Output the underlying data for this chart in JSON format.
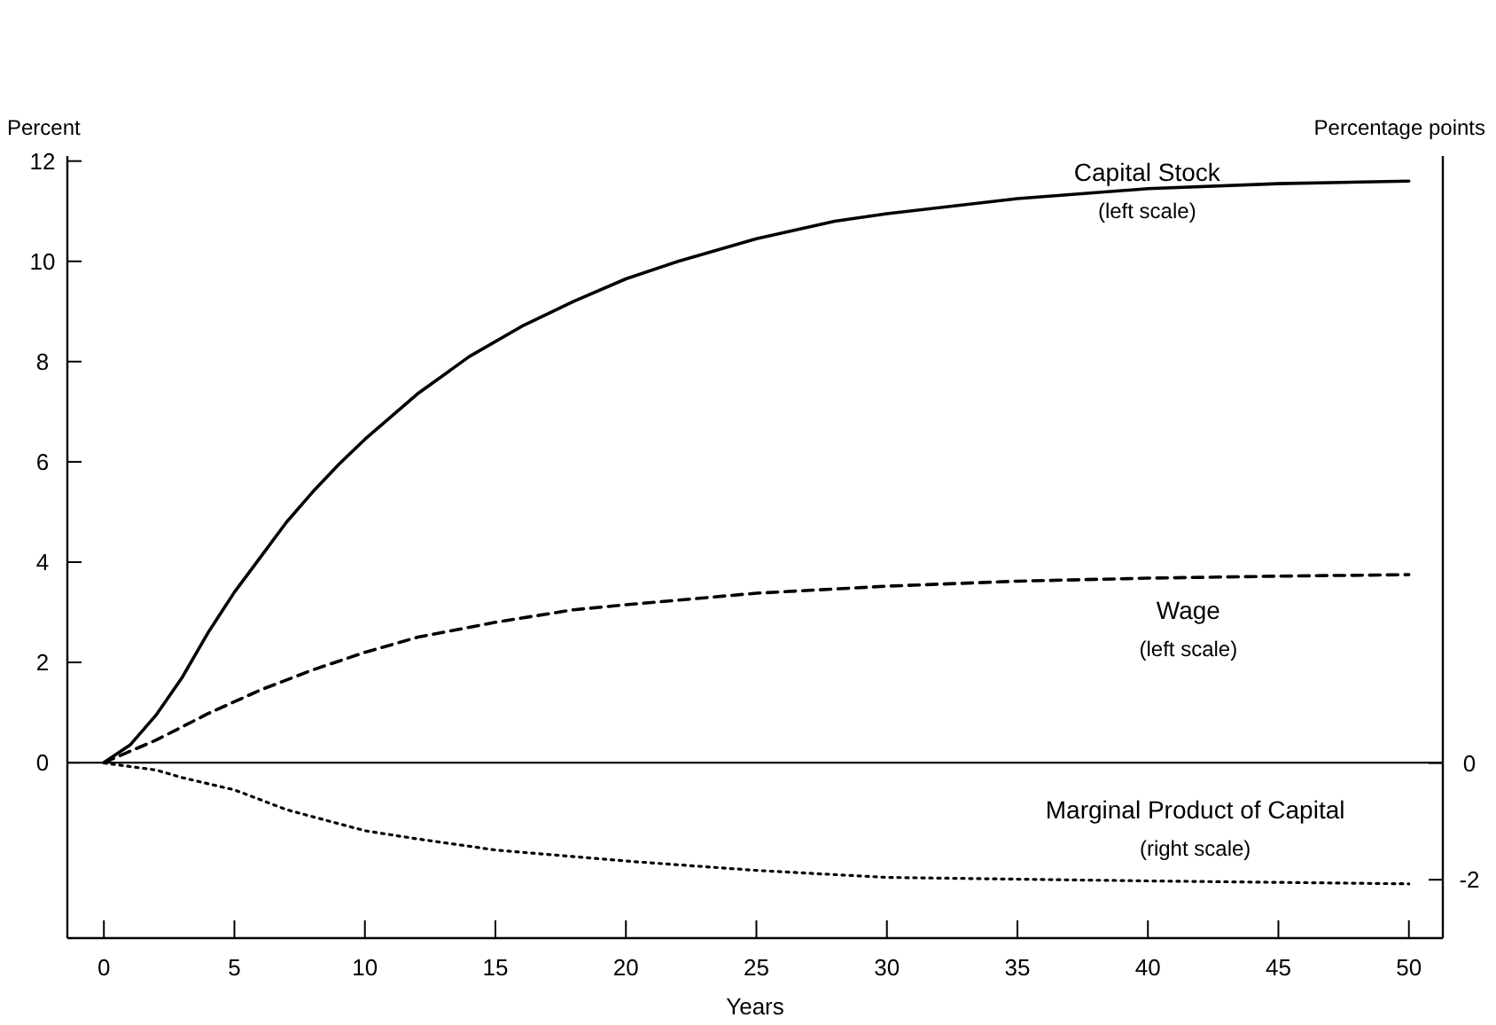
{
  "chart_data": {
    "type": "line",
    "xlabel": "Years",
    "ylabel": "Percent",
    "y2label": "Percentage points",
    "xlim": [
      -1.4,
      51.3
    ],
    "xticks": [
      0,
      5,
      10,
      15,
      20,
      25,
      30,
      35,
      40,
      45,
      50
    ],
    "ylim": [
      -3.5,
      12.1
    ],
    "yticks": [
      0,
      2,
      4,
      6,
      8,
      10,
      12
    ],
    "y2lim": [
      -3,
      10.4
    ],
    "y2ticks": [
      0,
      -2
    ],
    "grid": false,
    "marker": "none",
    "ref_lines": [
      {
        "axis": "y",
        "value": 0,
        "color": "#000000",
        "line_style": "solid"
      }
    ],
    "series": [
      {
        "name": "Capital Stock",
        "color": "#000000",
        "line_style": "solid",
        "x": [
          0,
          1,
          2,
          3,
          4,
          5,
          6,
          7,
          8,
          9,
          10,
          12,
          14,
          16,
          18,
          20,
          22,
          25,
          28,
          30,
          35,
          40,
          45,
          50
        ],
        "values": [
          0,
          0.35,
          0.95,
          1.7,
          2.6,
          3.4,
          4.1,
          4.8,
          5.4,
          5.95,
          6.45,
          7.35,
          8.1,
          8.7,
          9.2,
          9.65,
          10.0,
          10.45,
          10.8,
          10.95,
          11.25,
          11.45,
          11.55,
          11.6
        ]
      },
      {
        "name": "Wage",
        "color": "#000000",
        "line_style": "dashed",
        "x": [
          0,
          2,
          4,
          6,
          8,
          10,
          12,
          15,
          18,
          20,
          25,
          30,
          35,
          40,
          45,
          50
        ],
        "values": [
          0,
          0.45,
          0.98,
          1.45,
          1.85,
          2.2,
          2.5,
          2.8,
          3.05,
          3.15,
          3.38,
          3.52,
          3.62,
          3.68,
          3.72,
          3.75
        ]
      },
      {
        "name": "Marginal Product of Capital",
        "color": "#000000",
        "line_style": "dotted",
        "axis": "y2",
        "x": [
          0,
          2,
          3,
          5,
          7,
          10,
          12,
          15,
          20,
          25,
          30,
          40,
          50
        ],
        "values": [
          0,
          -0.12,
          -0.25,
          -0.46,
          -0.8,
          -1.16,
          -1.3,
          -1.49,
          -1.68,
          -1.84,
          -1.96,
          -2.02,
          -2.07
        ]
      }
    ],
    "annotations": [
      "(left scale)",
      "(left scale)",
      "(right scale)"
    ]
  }
}
